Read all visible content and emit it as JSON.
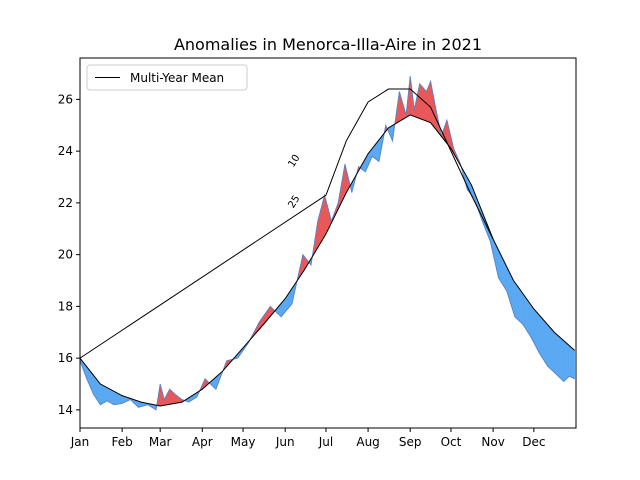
{
  "chart_data": {
    "type": "area",
    "title": "Anomalies in Menorca-Illa-Aire in 2021",
    "xlabel": "",
    "ylabel": "",
    "x_tick_labels": [
      "Jan",
      "Feb",
      "Mar",
      "Apr",
      "May",
      "Jun",
      "Jul",
      "Aug",
      "Sep",
      "Oct",
      "Nov",
      "Dec"
    ],
    "y_ticks": [
      14,
      16,
      18,
      20,
      22,
      24,
      26
    ],
    "ylim": [
      13.3,
      27.6
    ],
    "xlim_day": [
      0,
      365
    ],
    "legend": {
      "label": "Multi-Year Mean",
      "position": "upper-left"
    },
    "contour_labels": [
      {
        "text": "10",
        "day": 180
      },
      {
        "text": "25",
        "day": 180
      }
    ],
    "colors": {
      "above": "#e8585a",
      "below": "#5aa9f2",
      "mean_line": "#000000",
      "actual_line": "#5b84c4"
    },
    "series": [
      {
        "name": "Multi-Year Mean",
        "x_day": [
          0,
          15,
          31,
          45,
          59,
          75,
          90,
          105,
          120,
          135,
          151,
          165,
          181,
          196,
          212,
          227,
          243,
          258,
          273,
          288,
          304,
          319,
          334,
          349,
          364
        ],
        "values": [
          16.0,
          15.0,
          14.55,
          14.3,
          14.15,
          14.3,
          14.8,
          15.5,
          16.4,
          17.3,
          18.3,
          19.4,
          20.8,
          22.4,
          23.9,
          24.9,
          25.4,
          25.1,
          24.1,
          22.7,
          20.6,
          19.0,
          17.9,
          17.0,
          16.3
        ]
      },
      {
        "x_day": [
          0,
          181,
          196,
          212,
          227,
          243,
          258,
          273,
          288,
          304
        ],
        "values": [
          16.0,
          22.3,
          24.4,
          25.9,
          26.4,
          26.4,
          25.7,
          24.0,
          22.3,
          20.6
        ]
      },
      {
        "x_day": [
          0,
          5,
          10,
          15,
          20,
          25,
          31,
          37,
          43,
          50,
          56,
          59,
          62,
          66,
          70,
          75,
          80,
          86,
          92,
          100,
          108,
          116,
          124,
          132,
          140,
          148,
          156,
          164,
          170,
          175,
          180,
          185,
          190,
          195,
          200,
          205,
          210,
          215,
          220,
          225,
          230,
          235,
          240,
          243,
          246,
          250,
          255,
          258,
          262,
          266,
          270,
          275,
          280,
          285,
          290,
          296,
          302,
          308,
          314,
          320,
          326,
          332,
          338,
          344,
          350,
          356,
          360,
          364
        ],
        "values": [
          15.9,
          15.2,
          14.6,
          14.2,
          14.35,
          14.2,
          14.25,
          14.4,
          14.1,
          14.2,
          14.0,
          15.0,
          14.4,
          14.8,
          14.6,
          14.4,
          14.3,
          14.5,
          15.2,
          14.8,
          15.9,
          16.0,
          16.6,
          17.4,
          18.0,
          17.6,
          18.1,
          20.0,
          19.6,
          21.3,
          22.3,
          21.3,
          22.0,
          23.5,
          22.4,
          23.4,
          23.2,
          23.8,
          23.6,
          25.0,
          24.4,
          26.3,
          25.4,
          26.9,
          25.6,
          26.6,
          26.3,
          26.7,
          25.6,
          24.6,
          25.2,
          24.1,
          23.5,
          22.5,
          22.2,
          21.3,
          20.5,
          19.1,
          18.6,
          17.6,
          17.3,
          16.8,
          16.2,
          15.7,
          15.4,
          15.1,
          15.3,
          15.2
        ]
      }
    ]
  }
}
